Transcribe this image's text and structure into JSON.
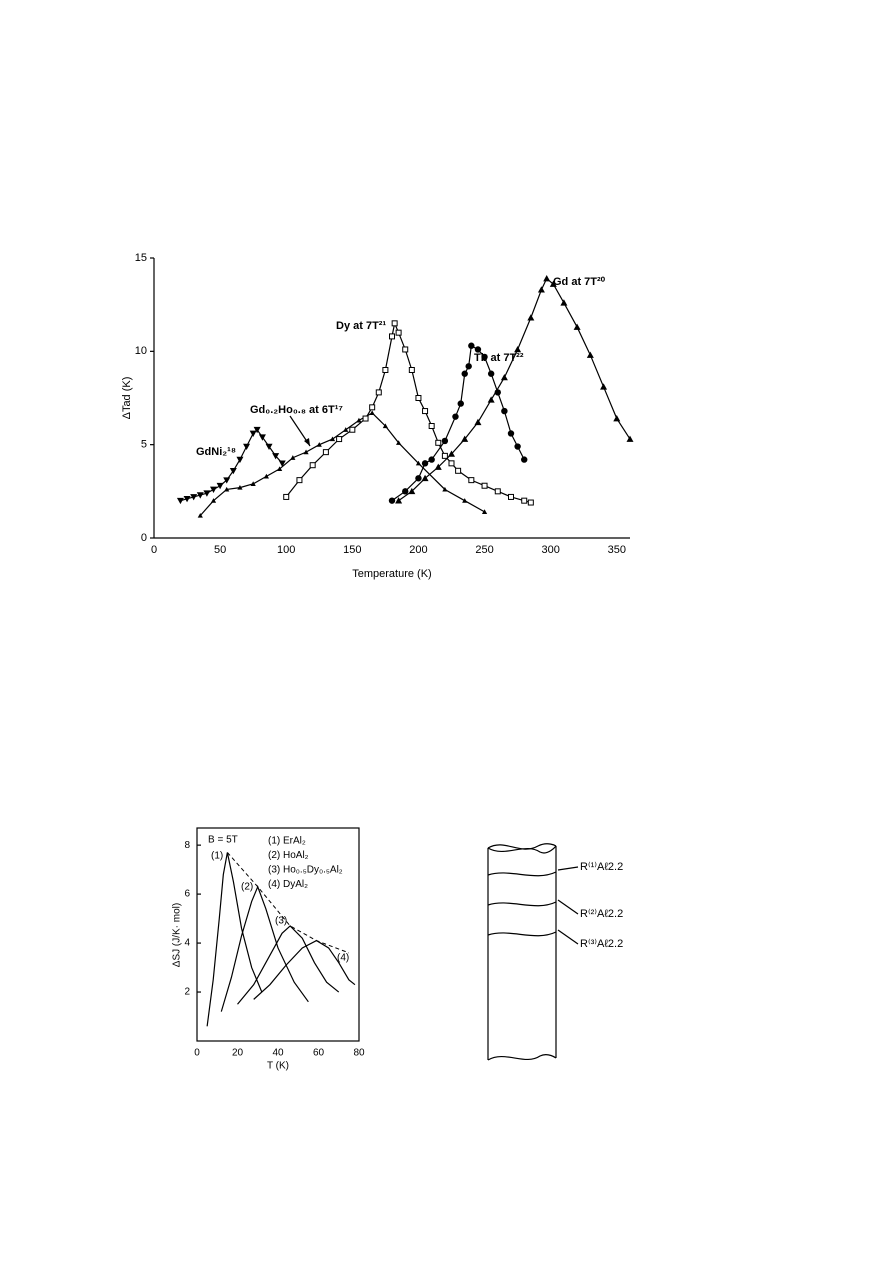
{
  "chart_data": [
    {
      "type": "line",
      "x_label": "Temperature (K)",
      "y_label": "ΔTad (K)",
      "xlim": [
        0,
        360
      ],
      "ylim": [
        0,
        15
      ],
      "xticks": [
        0,
        50,
        100,
        150,
        200,
        250,
        300,
        350
      ],
      "yticks": [
        0,
        5,
        10,
        15
      ],
      "series": [
        {
          "name": "GdNi₂¹⁸",
          "color": "#000",
          "marker": "triangle-down",
          "x": [
            20,
            25,
            30,
            35,
            40,
            45,
            50,
            55,
            60,
            65,
            70,
            75,
            78,
            82,
            87,
            92,
            97
          ],
          "values": [
            2.0,
            2.1,
            2.2,
            2.3,
            2.4,
            2.6,
            2.8,
            3.1,
            3.6,
            4.2,
            4.9,
            5.6,
            5.8,
            5.4,
            4.9,
            4.4,
            4.0
          ]
        },
        {
          "name": "Gd₀.₂Ho₀.₈ at 6T¹⁷",
          "color": "#000",
          "marker": "triangle-small",
          "x": [
            35,
            45,
            55,
            65,
            75,
            85,
            95,
            105,
            115,
            125,
            135,
            145,
            155,
            165,
            175,
            185,
            200,
            220,
            235,
            250
          ],
          "values": [
            1.2,
            2.0,
            2.6,
            2.7,
            2.9,
            3.3,
            3.7,
            4.3,
            4.6,
            5.0,
            5.3,
            5.8,
            6.3,
            6.7,
            6.0,
            5.1,
            4.0,
            2.6,
            2.0,
            1.4
          ]
        },
        {
          "name": "Dy at 7T²¹",
          "color": "#000",
          "marker": "square-open",
          "x": [
            100,
            110,
            120,
            130,
            140,
            150,
            160,
            165,
            170,
            175,
            180,
            182,
            185,
            190,
            195,
            200,
            205,
            210,
            215,
            220,
            225,
            230,
            240,
            250,
            260,
            270,
            280,
            285
          ],
          "values": [
            2.2,
            3.1,
            3.9,
            4.6,
            5.3,
            5.8,
            6.4,
            7.0,
            7.8,
            9.0,
            10.8,
            11.5,
            11.0,
            10.1,
            9.0,
            7.5,
            6.8,
            6.0,
            5.1,
            4.4,
            4.0,
            3.6,
            3.1,
            2.8,
            2.5,
            2.2,
            2.0,
            1.9
          ]
        },
        {
          "name": "Tb at 7T²²",
          "color": "#000",
          "marker": "circle",
          "x": [
            180,
            190,
            200,
            205,
            210,
            220,
            228,
            232,
            235,
            238,
            240,
            245,
            250,
            255,
            260,
            265,
            270,
            275,
            280
          ],
          "values": [
            2.0,
            2.5,
            3.2,
            4.0,
            4.2,
            5.2,
            6.5,
            7.2,
            8.8,
            9.2,
            10.3,
            10.1,
            9.7,
            8.8,
            7.8,
            6.8,
            5.6,
            4.9,
            4.2
          ]
        },
        {
          "name": "Gd at 7T²⁰",
          "color": "#000",
          "marker": "triangle",
          "x": [
            185,
            195,
            205,
            215,
            225,
            235,
            245,
            255,
            265,
            275,
            285,
            293,
            297,
            302,
            310,
            320,
            330,
            340,
            350,
            360
          ],
          "values": [
            2.0,
            2.5,
            3.2,
            3.8,
            4.5,
            5.3,
            6.2,
            7.4,
            8.6,
            10.1,
            11.8,
            13.3,
            13.9,
            13.6,
            12.6,
            11.3,
            9.8,
            8.1,
            6.4,
            5.3
          ]
        }
      ]
    },
    {
      "type": "line",
      "x_label": "T (K)",
      "y_label": "ΔSJ (J/K· mol)",
      "annotation": "B = 5T",
      "xlim": [
        0,
        80
      ],
      "ylim": [
        0,
        8.7
      ],
      "xticks": [
        0,
        20,
        40,
        60,
        80
      ],
      "yticks": [
        2,
        4,
        6,
        8
      ],
      "curve_labels": [
        "(1)",
        "(2)",
        "(3)",
        "(4)"
      ],
      "series": [
        {
          "name": "(1) ErAl₂",
          "color": "#000",
          "x": [
            5,
            8,
            11,
            13,
            15,
            18,
            22,
            27,
            32
          ],
          "values": [
            0.6,
            2.5,
            5.0,
            6.8,
            7.7,
            6.5,
            4.6,
            3.0,
            2.0
          ]
        },
        {
          "name": "(2) HoAl₂",
          "color": "#000",
          "x": [
            12,
            17,
            22,
            27,
            30,
            34,
            40,
            48,
            55
          ],
          "values": [
            1.2,
            2.6,
            4.3,
            5.7,
            6.3,
            5.4,
            3.8,
            2.4,
            1.6
          ]
        },
        {
          "name": "(3) Ho₀.₅Dy₀.₅Al₂",
          "color": "#000",
          "x": [
            20,
            28,
            36,
            42,
            46,
            52,
            58,
            64,
            70
          ],
          "values": [
            1.5,
            2.3,
            3.5,
            4.4,
            4.7,
            4.2,
            3.2,
            2.4,
            2.0
          ]
        },
        {
          "name": "(4) DyAl₂",
          "color": "#000",
          "x": [
            28,
            36,
            44,
            52,
            59,
            65,
            70,
            75,
            78
          ],
          "values": [
            1.7,
            2.3,
            3.1,
            3.8,
            4.1,
            3.8,
            3.2,
            2.5,
            2.3
          ]
        }
      ],
      "envelope": {
        "x": [
          15,
          30,
          46,
          59,
          75
        ],
        "values": [
          7.7,
          6.3,
          4.7,
          4.1,
          3.6
        ],
        "dashed": true
      }
    }
  ],
  "diagram": {
    "labels": [
      "R⁽¹⁾Aℓ2.2",
      "R⁽²⁾Aℓ2.2",
      "R⁽³⁾Aℓ2.2"
    ]
  }
}
